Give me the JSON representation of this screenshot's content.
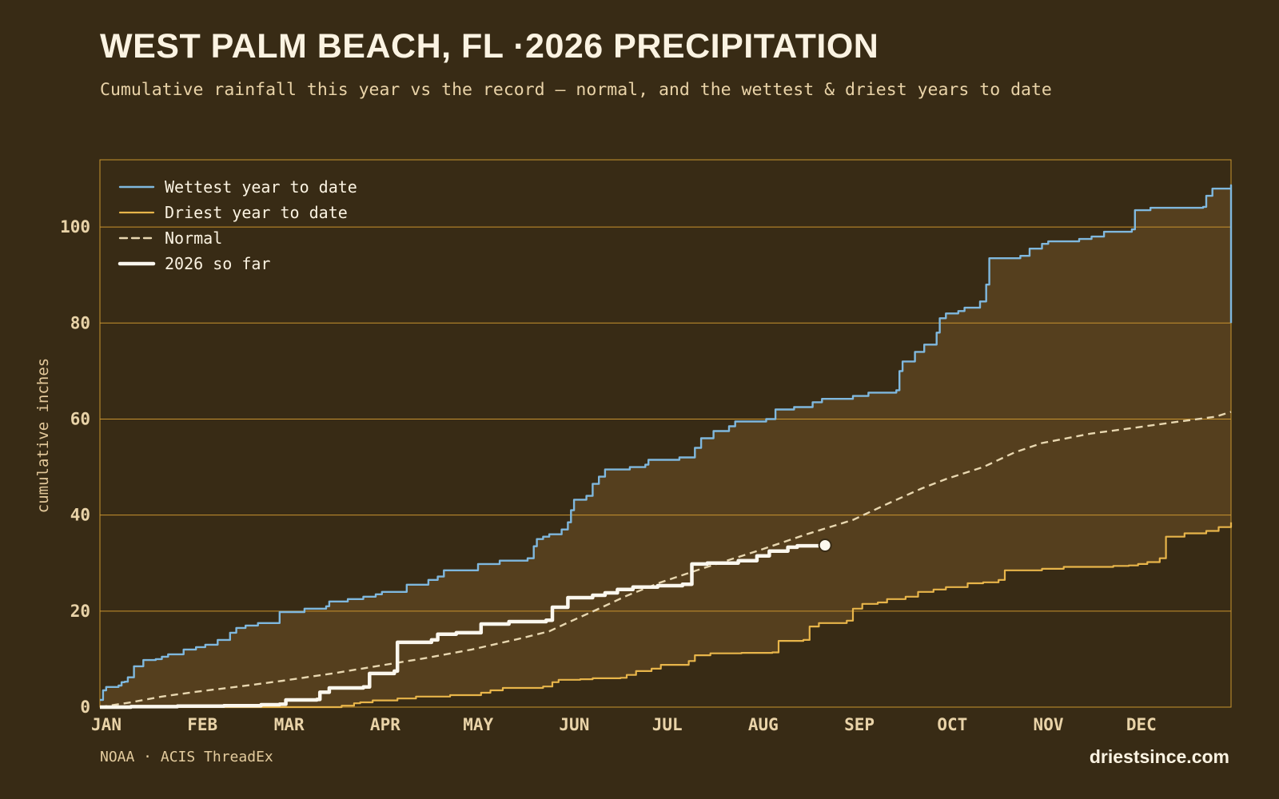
{
  "header": {
    "title": "WEST PALM BEACH, FL ·2026 PRECIPITATION",
    "subtitle": "Cumulative rainfall this year vs the record — normal, and the wettest & driest years to date"
  },
  "footer": {
    "source": "NOAA · ACIS ThreadEx",
    "brand": "driestsince.com"
  },
  "colors": {
    "background": "#382b15",
    "band_fill": "#553f1e",
    "gridline": "#c9942f",
    "wettest": "#7fb8de",
    "driest": "#e8b54a",
    "normal": "#e8d7b0",
    "current": "#fbf7ee"
  },
  "chart_data": {
    "type": "line",
    "title": "WEST PALM BEACH, FL ·2026 PRECIPITATION",
    "ylabel": "cumulative inches",
    "xlabel": "",
    "ylim": [
      0,
      114
    ],
    "xlim": [
      0,
      365
    ],
    "yticks": [
      0,
      20,
      40,
      60,
      80,
      100
    ],
    "xticks": [
      {
        "label": "JAN",
        "day": 0
      },
      {
        "label": "FEB",
        "day": 31
      },
      {
        "label": "MAR",
        "day": 59
      },
      {
        "label": "APR",
        "day": 90
      },
      {
        "label": "MAY",
        "day": 120
      },
      {
        "label": "JUN",
        "day": 151
      },
      {
        "label": "JUL",
        "day": 181
      },
      {
        "label": "AUG",
        "day": 212
      },
      {
        "label": "SEP",
        "day": 243
      },
      {
        "label": "OCT",
        "day": 273
      },
      {
        "label": "NOV",
        "day": 304
      },
      {
        "label": "DEC",
        "day": 334
      }
    ],
    "grid": true,
    "legend_position": "top-left",
    "series": [
      {
        "name": "Wettest year to date",
        "key": "wettest",
        "style": "step",
        "points": [
          [
            0,
            1.5
          ],
          [
            1,
            3.5
          ],
          [
            2,
            4.2
          ],
          [
            6,
            4.5
          ],
          [
            7,
            5.2
          ],
          [
            8,
            5.3
          ],
          [
            9,
            6.2
          ],
          [
            11,
            8.5
          ],
          [
            14,
            9.8
          ],
          [
            18,
            10
          ],
          [
            20,
            10.5
          ],
          [
            22,
            11
          ],
          [
            27,
            12
          ],
          [
            31,
            12.5
          ],
          [
            34,
            13
          ],
          [
            38,
            14
          ],
          [
            42,
            15.5
          ],
          [
            44,
            16.5
          ],
          [
            47,
            17
          ],
          [
            51,
            17.5
          ],
          [
            57,
            17.5
          ],
          [
            58,
            19.8
          ],
          [
            66,
            20.5
          ],
          [
            73,
            21
          ],
          [
            74,
            22
          ],
          [
            80,
            22.5
          ],
          [
            85,
            23
          ],
          [
            89,
            23.5
          ],
          [
            91,
            24
          ],
          [
            99,
            25.5
          ],
          [
            106,
            26.5
          ],
          [
            109,
            27.2
          ],
          [
            111,
            28.5
          ],
          [
            122,
            29.8
          ],
          [
            129,
            30.5
          ],
          [
            138,
            31
          ],
          [
            140,
            33.5
          ],
          [
            141,
            35
          ],
          [
            143,
            35.5
          ],
          [
            145,
            36
          ],
          [
            149,
            37
          ],
          [
            151,
            38.5
          ],
          [
            152,
            41
          ],
          [
            153,
            43.2
          ],
          [
            157,
            44
          ],
          [
            159,
            46.5
          ],
          [
            161,
            48
          ],
          [
            163,
            49.5
          ],
          [
            171,
            50
          ],
          [
            176,
            50.5
          ],
          [
            177,
            51.5
          ],
          [
            187,
            52
          ],
          [
            192,
            54
          ],
          [
            194,
            56
          ],
          [
            198,
            57.5
          ],
          [
            203,
            58.5
          ],
          [
            205,
            59.5
          ],
          [
            215,
            60
          ],
          [
            218,
            62
          ],
          [
            224,
            62.5
          ],
          [
            230,
            63.5
          ],
          [
            233,
            64.2
          ],
          [
            243,
            64.8
          ],
          [
            248,
            65.5
          ],
          [
            257,
            66
          ],
          [
            258,
            70
          ],
          [
            259,
            72
          ],
          [
            263,
            74
          ],
          [
            266,
            75.5
          ],
          [
            270,
            78
          ],
          [
            271,
            81
          ],
          [
            273,
            82
          ],
          [
            277,
            82.5
          ],
          [
            279,
            83.2
          ],
          [
            284,
            84.5
          ],
          [
            286,
            88
          ],
          [
            287,
            93.5
          ],
          [
            297,
            94
          ],
          [
            300,
            95.5
          ],
          [
            304,
            96.5
          ],
          [
            306,
            97
          ],
          [
            316,
            97.5
          ],
          [
            320,
            98
          ],
          [
            324,
            99
          ],
          [
            333,
            99.5
          ],
          [
            334,
            103.5
          ],
          [
            339,
            104
          ],
          [
            356,
            104.2
          ],
          [
            357,
            106.5
          ],
          [
            359,
            108
          ],
          [
            365,
            108.7
          ],
          [
            365,
            80
          ]
        ]
      },
      {
        "name": "Driest year to date",
        "key": "driest",
        "style": "step",
        "points": [
          [
            0,
            0
          ],
          [
            59,
            0
          ],
          [
            78,
            0.3
          ],
          [
            82,
            0.8
          ],
          [
            84,
            1
          ],
          [
            88,
            1.4
          ],
          [
            96,
            1.8
          ],
          [
            102,
            2.2
          ],
          [
            113,
            2.5
          ],
          [
            123,
            3
          ],
          [
            126,
            3.5
          ],
          [
            130,
            4
          ],
          [
            143,
            4.3
          ],
          [
            146,
            5.2
          ],
          [
            148,
            5.7
          ],
          [
            155,
            5.8
          ],
          [
            159,
            6
          ],
          [
            168,
            6.1
          ],
          [
            170,
            6.7
          ],
          [
            173,
            7.5
          ],
          [
            178,
            8
          ],
          [
            181,
            8.8
          ],
          [
            190,
            9.6
          ],
          [
            192,
            10.8
          ],
          [
            197,
            11.2
          ],
          [
            207,
            11.3
          ],
          [
            217,
            11.4
          ],
          [
            219,
            13.8
          ],
          [
            227,
            14
          ],
          [
            229,
            16.8
          ],
          [
            232,
            17.5
          ],
          [
            241,
            18
          ],
          [
            243,
            20.5
          ],
          [
            246,
            21.5
          ],
          [
            251,
            21.8
          ],
          [
            254,
            22.5
          ],
          [
            260,
            23
          ],
          [
            264,
            24
          ],
          [
            269,
            24.5
          ],
          [
            273,
            25
          ],
          [
            280,
            25.8
          ],
          [
            285,
            26
          ],
          [
            290,
            26.5
          ],
          [
            292,
            28.5
          ],
          [
            304,
            28.8
          ],
          [
            311,
            29.2
          ],
          [
            327,
            29.4
          ],
          [
            332,
            29.5
          ],
          [
            335,
            29.8
          ],
          [
            338,
            30.2
          ],
          [
            342,
            31
          ],
          [
            344,
            35.5
          ],
          [
            350,
            36.2
          ],
          [
            357,
            36.7
          ],
          [
            361,
            37.5
          ],
          [
            365,
            38.5
          ]
        ]
      },
      {
        "name": "Normal",
        "key": "normal",
        "style": "dashed",
        "points": [
          [
            0,
            0
          ],
          [
            10,
            1
          ],
          [
            20,
            2.2
          ],
          [
            31,
            3.2
          ],
          [
            45,
            4.3
          ],
          [
            59,
            5.5
          ],
          [
            75,
            7
          ],
          [
            90,
            8.6
          ],
          [
            105,
            10.2
          ],
          [
            120,
            12
          ],
          [
            135,
            14.2
          ],
          [
            145,
            15.8
          ],
          [
            151,
            17.6
          ],
          [
            160,
            20.2
          ],
          [
            170,
            23.2
          ],
          [
            181,
            26
          ],
          [
            195,
            29
          ],
          [
            212,
            32.5
          ],
          [
            228,
            36
          ],
          [
            243,
            39
          ],
          [
            255,
            42.6
          ],
          [
            265,
            45.5
          ],
          [
            273,
            47.5
          ],
          [
            285,
            50
          ],
          [
            295,
            53
          ],
          [
            304,
            55
          ],
          [
            320,
            57
          ],
          [
            334,
            58.2
          ],
          [
            345,
            59.2
          ],
          [
            360,
            60.5
          ],
          [
            365,
            61.5
          ]
        ]
      },
      {
        "name": "2026 so far",
        "key": "current",
        "style": "step",
        "points": [
          [
            0,
            0
          ],
          [
            10,
            0.1
          ],
          [
            25,
            0.2
          ],
          [
            40,
            0.3
          ],
          [
            52,
            0.5
          ],
          [
            58,
            0.6
          ],
          [
            60,
            1.5
          ],
          [
            70,
            1.6
          ],
          [
            71,
            3.1
          ],
          [
            74,
            4
          ],
          [
            85,
            4.2
          ],
          [
            87,
            7
          ],
          [
            95,
            7.5
          ],
          [
            96,
            13.5
          ],
          [
            107,
            14
          ],
          [
            109,
            15.2
          ],
          [
            115,
            15.5
          ],
          [
            123,
            17.3
          ],
          [
            132,
            17.8
          ],
          [
            144,
            18.1
          ],
          [
            146,
            20.8
          ],
          [
            151,
            22.8
          ],
          [
            159,
            23.3
          ],
          [
            163,
            23.8
          ],
          [
            167,
            24.5
          ],
          [
            172,
            25
          ],
          [
            180,
            25.3
          ],
          [
            188,
            25.6
          ],
          [
            191,
            29.8
          ],
          [
            196,
            30
          ],
          [
            206,
            30.5
          ],
          [
            212,
            31.5
          ],
          [
            216,
            32.5
          ],
          [
            222,
            33.3
          ],
          [
            225,
            33.6
          ],
          [
            234,
            33.7
          ]
        ],
        "end_marker": true
      }
    ]
  }
}
